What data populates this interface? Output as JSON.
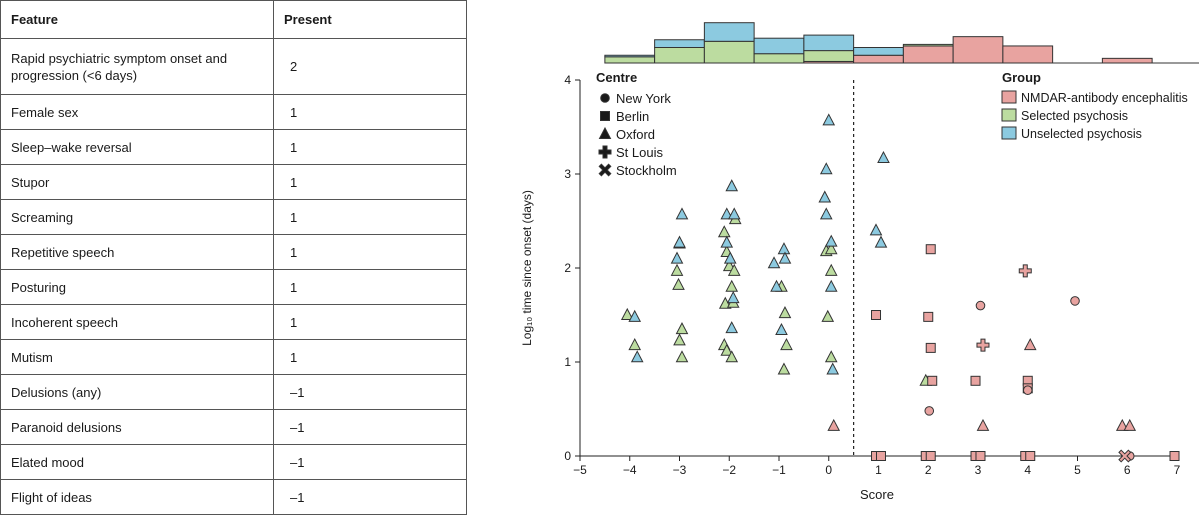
{
  "table": {
    "headers": [
      "Feature",
      "Present"
    ],
    "rows": [
      {
        "feature": "Rapid psychiatric symptom onset and progression (<6 days)",
        "present": "2"
      },
      {
        "feature": "Female sex",
        "present": "1"
      },
      {
        "feature": "Sleep–wake reversal",
        "present": "1"
      },
      {
        "feature": "Stupor",
        "present": "1"
      },
      {
        "feature": "Screaming",
        "present": "1"
      },
      {
        "feature": "Repetitive speech",
        "present": "1"
      },
      {
        "feature": "Posturing",
        "present": "1"
      },
      {
        "feature": "Incoherent speech",
        "present": "1"
      },
      {
        "feature": "Mutism",
        "present": "1"
      },
      {
        "feature": "Delusions (any)",
        "present": "–1"
      },
      {
        "feature": "Paranoid delusions",
        "present": "–1"
      },
      {
        "feature": "Elated mood",
        "present": "–1"
      },
      {
        "feature": "Flight of ideas",
        "present": "–1"
      }
    ]
  },
  "chart_data": {
    "type": "scatter",
    "xlabel": "Score",
    "ylabel": "Log₁₀ time since onset (days)",
    "xlim": [
      -5,
      7
    ],
    "ylim": [
      0,
      4
    ],
    "xticks": [
      "−5",
      "−4",
      "−3",
      "−2",
      "−1",
      "0",
      "1",
      "2",
      "3",
      "4",
      "5",
      "6",
      "7"
    ],
    "yticks": [
      "0",
      "1",
      "2",
      "3",
      "4"
    ],
    "threshold_x": 0.5,
    "legend_centre": {
      "title": "Centre",
      "items": [
        {
          "label": "New York",
          "shape": "circle"
        },
        {
          "label": "Berlin",
          "shape": "square"
        },
        {
          "label": "Oxford",
          "shape": "triangle"
        },
        {
          "label": "St Louis",
          "shape": "plus"
        },
        {
          "label": "Stockholm",
          "shape": "cross"
        }
      ]
    },
    "legend_group": {
      "title": "Group",
      "items": [
        {
          "label": "NMDAR-antibody encephalitis",
          "key": "nmdar"
        },
        {
          "label": "Selected psychosis",
          "key": "selected"
        },
        {
          "label": "Unselected psychosis",
          "key": "unselected"
        }
      ]
    },
    "colors": {
      "nmdar": "#e8a3a0",
      "selected": "#bcdca0",
      "unselected": "#8ccae0",
      "stroke": "#333333"
    },
    "histogram": {
      "bins": [
        -4.5,
        -3.5,
        -2.5,
        -1.5,
        -0.5,
        0.5,
        1.5,
        2.5,
        3.5,
        4.5,
        5.5,
        6.5,
        7.5
      ],
      "stack_order": [
        "nmdar",
        "selected",
        "unselected"
      ],
      "nmdar": [
        0,
        0,
        0,
        0,
        1,
        5,
        11,
        17,
        11,
        0,
        3,
        0
      ],
      "selected": [
        4,
        10,
        14,
        6,
        7,
        0,
        1,
        0,
        0,
        0,
        0,
        0
      ],
      "unselected": [
        1,
        5,
        12,
        10,
        10,
        5,
        0,
        0,
        0,
        0,
        0,
        0
      ]
    },
    "series": [
      {
        "name": "Selected psychosis",
        "group": "selected",
        "shape": "triangle",
        "points": [
          [
            -4.05,
            1.5
          ],
          [
            -3.9,
            1.18
          ],
          [
            -3.05,
            1.97
          ],
          [
            -3.0,
            2.26
          ],
          [
            -3.02,
            1.82
          ],
          [
            -2.95,
            1.35
          ],
          [
            -3.0,
            1.23
          ],
          [
            -2.95,
            1.05
          ],
          [
            -2.1,
            2.38
          ],
          [
            -2.05,
            2.17
          ],
          [
            -2.0,
            2.02
          ],
          [
            -1.9,
            1.97
          ],
          [
            -1.88,
            2.52
          ],
          [
            -1.95,
            1.8
          ],
          [
            -2.08,
            1.62
          ],
          [
            -1.92,
            1.63
          ],
          [
            -2.1,
            1.18
          ],
          [
            -2.05,
            1.12
          ],
          [
            -1.95,
            1.05
          ],
          [
            -0.95,
            1.8
          ],
          [
            -0.88,
            1.52
          ],
          [
            -0.85,
            1.18
          ],
          [
            -0.9,
            0.92
          ],
          [
            -0.05,
            2.18
          ],
          [
            0.05,
            1.97
          ],
          [
            -0.02,
            1.48
          ],
          [
            0.05,
            1.05
          ],
          [
            0.05,
            2.2
          ],
          [
            1.95,
            0.8
          ]
        ]
      },
      {
        "name": "Unselected psychosis",
        "group": "unselected",
        "shape": "triangle",
        "points": [
          [
            -3.9,
            1.48
          ],
          [
            -3.85,
            1.05
          ],
          [
            -2.95,
            2.57
          ],
          [
            -3.0,
            2.27
          ],
          [
            -3.05,
            2.1
          ],
          [
            -2.05,
            2.57
          ],
          [
            -1.9,
            2.57
          ],
          [
            -1.95,
            2.87
          ],
          [
            -2.05,
            2.27
          ],
          [
            -1.98,
            2.1
          ],
          [
            -1.92,
            1.68
          ],
          [
            -1.95,
            1.36
          ],
          [
            -1.1,
            2.05
          ],
          [
            -0.9,
            2.2
          ],
          [
            -0.88,
            2.1
          ],
          [
            -1.05,
            1.8
          ],
          [
            -0.95,
            1.34
          ],
          [
            0.0,
            3.57
          ],
          [
            -0.05,
            3.05
          ],
          [
            -0.08,
            2.75
          ],
          [
            -0.05,
            2.57
          ],
          [
            0.05,
            2.28
          ],
          [
            0.05,
            1.8
          ],
          [
            0.08,
            0.92
          ],
          [
            1.1,
            3.17
          ],
          [
            0.95,
            2.4
          ],
          [
            1.05,
            2.27
          ]
        ]
      },
      {
        "name": "NMDAR-antibody encephalitis",
        "group": "nmdar",
        "shape": "triangle",
        "points": [
          [
            0.1,
            0.32
          ],
          [
            3.1,
            0.32
          ],
          [
            4.05,
            1.18
          ],
          [
            5.9,
            0.32
          ],
          [
            6.05,
            0.32
          ]
        ]
      },
      {
        "name": "NMDAR-antibody encephalitis",
        "group": "nmdar",
        "shape": "square",
        "points": [
          [
            0.95,
            1.5
          ],
          [
            0.95,
            0
          ],
          [
            1.05,
            0
          ],
          [
            2.0,
            1.48
          ],
          [
            2.05,
            2.2
          ],
          [
            2.05,
            1.15
          ],
          [
            2.08,
            0.8
          ],
          [
            1.95,
            0
          ],
          [
            2.05,
            0
          ],
          [
            2.95,
            0.8
          ],
          [
            2.95,
            0
          ],
          [
            3.05,
            0
          ],
          [
            4.0,
            0.8
          ],
          [
            4.0,
            0.72
          ],
          [
            3.95,
            0
          ],
          [
            4.05,
            0
          ],
          [
            6.95,
            0
          ]
        ]
      },
      {
        "name": "NMDAR-antibody encephalitis",
        "group": "nmdar",
        "shape": "circle",
        "points": [
          [
            3.05,
            1.6
          ],
          [
            2.02,
            0.48
          ],
          [
            4.0,
            0.7
          ],
          [
            4.95,
            1.65
          ],
          [
            6.05,
            0
          ]
        ]
      },
      {
        "name": "NMDAR-antibody encephalitis",
        "group": "nmdar",
        "shape": "plus",
        "points": [
          [
            3.1,
            1.18
          ],
          [
            3.95,
            1.97
          ]
        ]
      },
      {
        "name": "NMDAR-antibody encephalitis",
        "group": "nmdar",
        "shape": "cross",
        "points": [
          [
            5.95,
            0
          ]
        ]
      }
    ]
  }
}
